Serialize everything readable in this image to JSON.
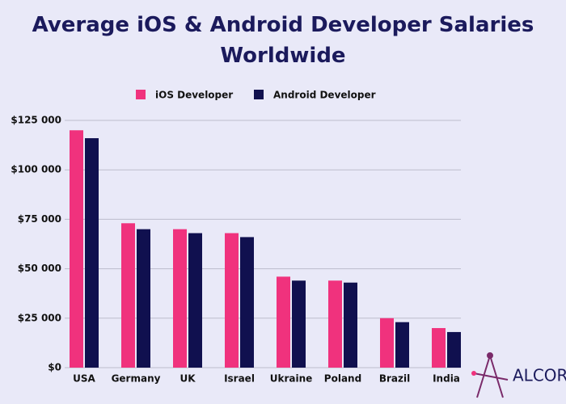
{
  "chart_data": {
    "type": "bar",
    "title": "Average iOS & Android Developer Salaries Worldwide",
    "categories": [
      "USA",
      "Germany",
      "UK",
      "Israel",
      "Ukraine",
      "Poland",
      "Brazil",
      "India"
    ],
    "series": [
      {
        "name": "iOS Developer",
        "color": "#f0327d",
        "values": [
          120000,
          73000,
          70000,
          68000,
          46000,
          44000,
          25000,
          20000
        ]
      },
      {
        "name": "Android Developer",
        "color": "#10104f",
        "values": [
          116000,
          70000,
          68000,
          66000,
          44000,
          43000,
          23000,
          18000
        ]
      }
    ],
    "ylim": [
      0,
      125000
    ],
    "yticks": [
      {
        "value": 0,
        "label": "$0"
      },
      {
        "value": 25000,
        "label": "$25 000"
      },
      {
        "value": 50000,
        "label": "$50 000"
      },
      {
        "value": 75000,
        "label": "$75 000"
      },
      {
        "value": 100000,
        "label": "$100 000"
      },
      {
        "value": 125000,
        "label": "$125 000"
      }
    ],
    "grid": true
  },
  "logo": "ALCOR"
}
